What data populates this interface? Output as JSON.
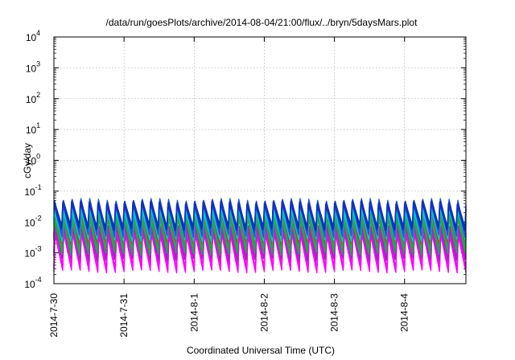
{
  "chart_data": {
    "type": "line",
    "title": "/data/run/goesPlots/archive/2014-08-04/21:00/flux/../bryn/5daysMars.plot",
    "xlabel": "Coordinated Universal Time (UTC)",
    "ylabel": "cGy/day",
    "yscale": "log",
    "ylim": [
      0.0001,
      10000
    ],
    "ytick_labels": [
      {
        "base": "10",
        "exp": "-4"
      },
      {
        "base": "10",
        "exp": "-3"
      },
      {
        "base": "10",
        "exp": "-2"
      },
      {
        "base": "10",
        "exp": "-1"
      },
      {
        "base": "10",
        "exp": "0"
      },
      {
        "base": "10",
        "exp": "1"
      },
      {
        "base": "10",
        "exp": "2"
      },
      {
        "base": "10",
        "exp": "3"
      },
      {
        "base": "10",
        "exp": "4"
      }
    ],
    "x_range": [
      "2014-07-30 00:00",
      "2014-08-04 21:00"
    ],
    "xtick_labels": [
      "2014-7-30",
      "2014-7-31",
      "2014-8-1",
      "2014-8-2",
      "2014-8-3",
      "2014-8-4"
    ],
    "grid": true,
    "legend": "none",
    "oscillation_period_hours": 3,
    "series_envelopes": [
      {
        "color": "#ff00ff",
        "peak_cGy_per_day": 0.005,
        "trough_cGy_per_day": 0.0003
      },
      {
        "color": "#aa22cc",
        "peak_cGy_per_day": 0.008,
        "trough_cGy_per_day": 0.0006
      },
      {
        "color": "#cc2255",
        "peak_cGy_per_day": 0.02,
        "trough_cGy_per_day": 0.0015
      },
      {
        "color": "#22aa44",
        "peak_cGy_per_day": 0.015,
        "trough_cGy_per_day": 0.001
      },
      {
        "color": "#00cccc",
        "peak_cGy_per_day": 0.03,
        "trough_cGy_per_day": 0.003
      },
      {
        "color": "#2255ee",
        "peak_cGy_per_day": 0.05,
        "trough_cGy_per_day": 0.004
      },
      {
        "color": "#1133bb",
        "peak_cGy_per_day": 0.045,
        "trough_cGy_per_day": 0.006
      }
    ]
  }
}
